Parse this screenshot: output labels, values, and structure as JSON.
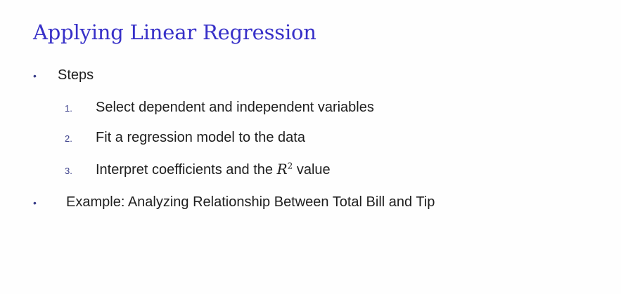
{
  "slide": {
    "title": "Applying Linear Regression",
    "bullets": [
      {
        "marker": "•",
        "text": "Steps",
        "sub_items": [
          {
            "number": "1.",
            "text": "Select dependent and independent variables"
          },
          {
            "number": "2.",
            "text": "Fit a regression model to the data"
          },
          {
            "number": "3.",
            "text_before": "Interpret coefficients and the ",
            "math_base": "R",
            "math_sup": "2",
            "text_after": " value"
          }
        ]
      },
      {
        "marker": "•",
        "text": "Example: Analyzing Relationship Between Total Bill and Tip"
      }
    ]
  },
  "colors": {
    "title": "#3730c8",
    "body_text": "#1e1e1e",
    "markers": "#3b3f8a",
    "background": "#fefefe"
  }
}
